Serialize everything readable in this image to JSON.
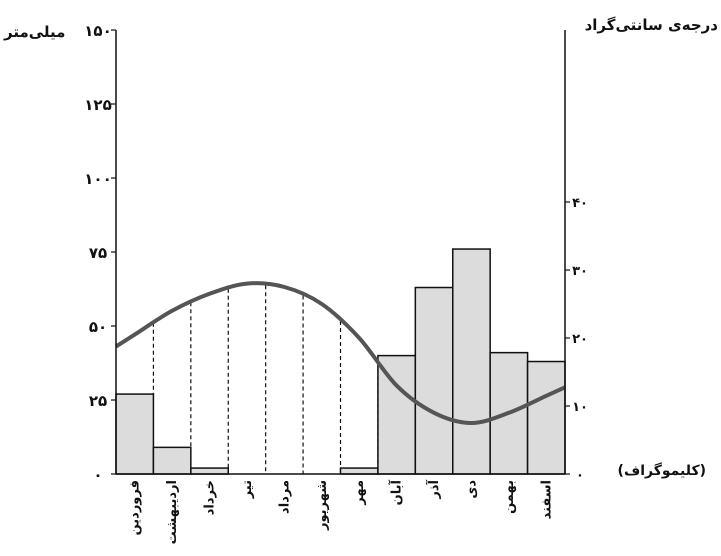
{
  "chart_data": {
    "type": "bar",
    "title": "(کلیموگراف)",
    "categories": [
      "فروردین",
      "اردیبهشت",
      "خرداد",
      "تیر",
      "مرداد",
      "شهریور",
      "مهر",
      "آبان",
      "آذر",
      "دی",
      "بهمن",
      "اسفند"
    ],
    "y_left": {
      "label": "میلی‌متر",
      "ticks": [
        "۰",
        "۲۵",
        "۵۰",
        "۷۵",
        "۱۰۰",
        "۱۲۵",
        "۱۵۰"
      ],
      "tick_values": [
        0,
        25,
        50,
        75,
        100,
        125,
        150
      ],
      "range": [
        0,
        150
      ]
    },
    "y_right": {
      "label": "درجه‌ی سانتی‌گراد",
      "ticks": [
        "۰",
        "۱۰",
        "۲۰",
        "۳۰",
        "۴۰"
      ],
      "tick_values": [
        0,
        10,
        20,
        30,
        40
      ],
      "range": [
        0,
        40
      ]
    },
    "series": [
      {
        "kind": "bar",
        "axis": "left",
        "values": [
          27,
          9,
          2,
          0,
          0,
          0,
          2,
          40,
          63,
          76,
          41,
          38
        ]
      },
      {
        "kind": "line",
        "axis": "right",
        "values": [
          20.5,
          24,
          26.5,
          28,
          27.5,
          25,
          20,
          13,
          9,
          7.5,
          9,
          11.5
        ]
      }
    ],
    "colors": {
      "bar_fill": "#dcdcdc",
      "bar_stroke": "#111111",
      "line": "#555555"
    }
  }
}
